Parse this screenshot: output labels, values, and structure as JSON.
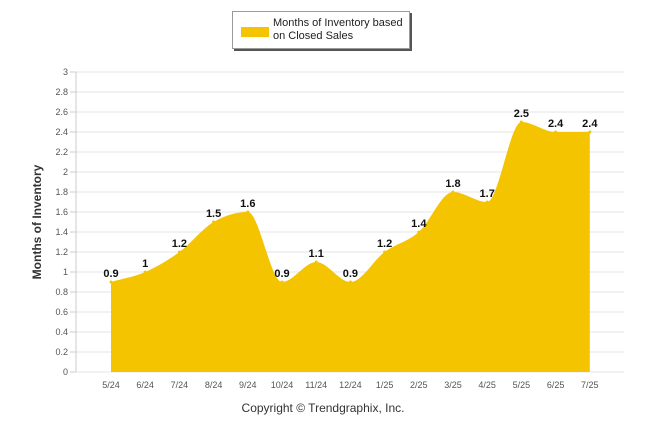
{
  "legend": {
    "label": "Months of Inventory based\non Closed Sales"
  },
  "footer": {
    "copyright": "Copyright © Trendgraphix, Inc."
  },
  "colors": {
    "series": "#f5c400",
    "grid": "#e6e6e6",
    "axis": "#cccccc"
  },
  "chart_data": {
    "type": "area",
    "ylabel": "Months of Inventory",
    "xlabel": "",
    "ylim": [
      0,
      3
    ],
    "yticks": [
      0,
      0.2,
      0.4,
      0.6,
      0.8,
      1,
      1.2,
      1.4,
      1.6,
      1.8,
      2,
      2.2,
      2.4,
      2.6,
      2.8,
      3
    ],
    "grid": true,
    "legend_position": "top",
    "categories": [
      "5/24",
      "6/24",
      "7/24",
      "8/24",
      "9/24",
      "10/24",
      "11/24",
      "12/24",
      "1/25",
      "2/25",
      "3/25",
      "4/25",
      "5/25",
      "6/25",
      "7/25"
    ],
    "series": [
      {
        "name": "Months of Inventory based on Closed Sales",
        "values": [
          0.9,
          1,
          1.2,
          1.5,
          1.6,
          0.9,
          1.1,
          0.9,
          1.2,
          1.4,
          1.8,
          1.7,
          2.5,
          2.4,
          2.4
        ],
        "labels": [
          "0.9",
          "1",
          "1.2",
          "1.5",
          "1.6",
          "0.9",
          "1.1",
          "0.9",
          "1.2",
          "1.4",
          "1.8",
          "1.7",
          "2.5",
          "2.4",
          "2.4"
        ]
      }
    ]
  }
}
